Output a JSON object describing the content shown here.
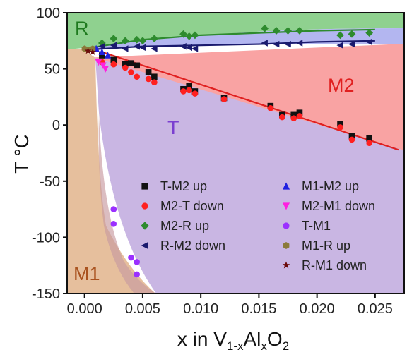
{
  "chart_data": {
    "type": "scatter",
    "title": "",
    "xlabel": {
      "base": "x in V",
      "sub1": "1-x",
      "mid": "Al",
      "sub2": "x",
      "end": "O",
      "sub3": "2"
    },
    "ylabel": "T °C",
    "xlim": [
      -0.0015,
      0.0275
    ],
    "ylim": [
      -150,
      100
    ],
    "x_ticks": [
      "0.000",
      "0.005",
      "0.010",
      "0.015",
      "0.020",
      "0.025"
    ],
    "x_tick_values": [
      0,
      0.005,
      0.01,
      0.015,
      0.02,
      0.025
    ],
    "y_ticks": [
      "100",
      "50",
      "0",
      "-50",
      "-100",
      "-150"
    ],
    "y_tick_values": [
      100,
      50,
      0,
      -50,
      -100,
      -150
    ],
    "regions": [
      {
        "label": "R",
        "color": "#8fd18f"
      },
      {
        "label": "M2",
        "color": "#f9a3a3"
      },
      {
        "label": "T",
        "color": "#c9b6e3"
      },
      {
        "label": "M1",
        "color": "#e6bf9d"
      }
    ],
    "region_label_colors": {
      "R": "#1e7a1e",
      "M2": "#e02020",
      "T": "#7a3fd0",
      "M1": "#a9521f"
    },
    "boundary_lines": [
      {
        "color": "#2e8b2e",
        "x": [
          0.0,
          0.005,
          0.01,
          0.015,
          0.02,
          0.025
        ],
        "y": [
          68,
          76,
          80,
          82,
          84,
          85
        ]
      },
      {
        "color": "#1a1a6e",
        "x": [
          0.0,
          0.005,
          0.01,
          0.015,
          0.02,
          0.025
        ],
        "y": [
          67,
          70,
          71,
          72,
          74,
          75
        ]
      },
      {
        "color": "#e02020",
        "x": [
          0.0015,
          0.027
        ],
        "y": [
          65,
          -22
        ]
      }
    ],
    "series": [
      {
        "name": "T-M2 up",
        "marker": "square",
        "color": "#111111",
        "x": [
          0.0015,
          0.0025,
          0.0035,
          0.004,
          0.0045,
          0.0055,
          0.006,
          0.0085,
          0.009,
          0.0095,
          0.012,
          0.016,
          0.017,
          0.018,
          0.0185,
          0.022,
          0.023,
          0.0245
        ],
        "y": [
          62,
          58,
          54,
          55,
          53,
          47,
          43,
          32,
          35,
          30,
          24,
          17,
          9,
          9,
          11,
          1,
          -10,
          -12
        ]
      },
      {
        "name": "M2-T down",
        "marker": "circle",
        "color": "#ff2020",
        "x": [
          0.0015,
          0.0025,
          0.0035,
          0.004,
          0.0045,
          0.0055,
          0.006,
          0.0085,
          0.009,
          0.0095,
          0.012,
          0.016,
          0.017,
          0.018,
          0.0185,
          0.022,
          0.023,
          0.0245
        ],
        "y": [
          56,
          54,
          51,
          47,
          43,
          41,
          38,
          30,
          31,
          28,
          23,
          15,
          7,
          6,
          8,
          -2,
          -13,
          -16
        ]
      },
      {
        "name": "M2-R up",
        "marker": "diamond",
        "color": "#2e8b2e",
        "x": [
          0.0015,
          0.0025,
          0.0035,
          0.0045,
          0.005,
          0.006,
          0.0085,
          0.009,
          0.0095,
          0.0155,
          0.0165,
          0.0175,
          0.0185,
          0.022,
          0.023,
          0.0245
        ],
        "y": [
          73,
          77,
          75,
          76,
          75,
          77,
          81,
          79,
          80,
          86,
          84,
          84,
          84,
          80,
          81,
          82
        ]
      },
      {
        "name": "R-M2 down",
        "marker": "triangle-left",
        "color": "#1a1a6e",
        "x": [
          0.0015,
          0.0025,
          0.0035,
          0.0045,
          0.005,
          0.006,
          0.0085,
          0.009,
          0.0095,
          0.0155,
          0.0165,
          0.0175,
          0.0185,
          0.022,
          0.023,
          0.0245
        ],
        "y": [
          70,
          71,
          68,
          70,
          69,
          68,
          70,
          69,
          68,
          73,
          72,
          72,
          73,
          71,
          72,
          74
        ]
      },
      {
        "name": "M1-M2 up",
        "marker": "triangle-up",
        "color": "#2020e0",
        "x": [
          0.001,
          0.0015,
          0.002
        ],
        "y": [
          68,
          65,
          62
        ]
      },
      {
        "name": "M2-M1 down",
        "marker": "triangle-down",
        "color": "#ff20e0",
        "x": [
          0.0012,
          0.0016,
          0.0018
        ],
        "y": [
          56,
          53,
          50
        ]
      },
      {
        "name": "T-M1",
        "marker": "circle",
        "color": "#9b30ff",
        "x": [
          0.0025,
          0.0025,
          0.004,
          0.0045,
          0.0045
        ],
        "y": [
          -75,
          -88,
          -118,
          -122,
          -133
        ]
      },
      {
        "name": "M1-R up",
        "marker": "hexagon",
        "color": "#8b7a3a",
        "x": [
          0.0,
          0.0003,
          0.0007
        ],
        "y": [
          68,
          67,
          68
        ]
      },
      {
        "name": "R-M1 down",
        "marker": "star",
        "color": "#6b0a0a",
        "x": [
          0.0003,
          0.0007
        ],
        "y": [
          66,
          65
        ]
      }
    ],
    "legend_position": "lower-center"
  }
}
